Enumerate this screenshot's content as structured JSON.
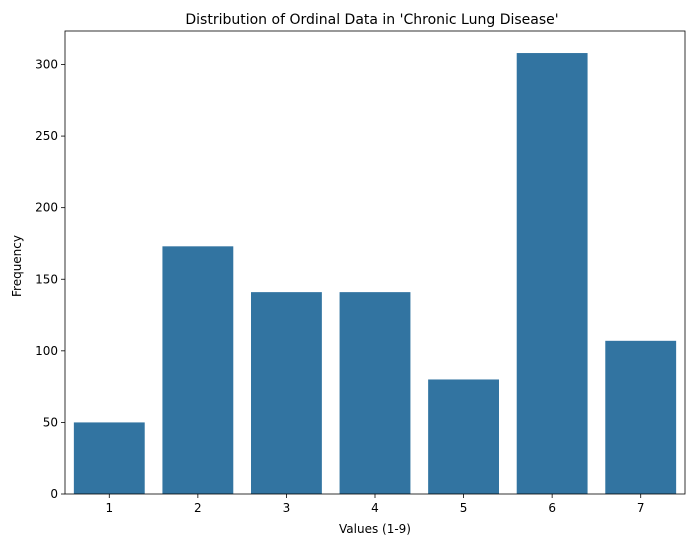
{
  "chart_data": {
    "type": "bar",
    "title": "Distribution of Ordinal Data in 'Chronic Lung Disease'",
    "xlabel": "Values (1-9)",
    "ylabel": "Frequency",
    "categories": [
      "1",
      "2",
      "3",
      "4",
      "5",
      "6",
      "7"
    ],
    "values": [
      50,
      173,
      141,
      141,
      80,
      308,
      107
    ],
    "ylim": [
      0,
      323.4
    ],
    "yticks": [
      0,
      50,
      100,
      150,
      200,
      250,
      300
    ],
    "grid": false,
    "legend": "none",
    "bar_color": "#3274a1"
  }
}
